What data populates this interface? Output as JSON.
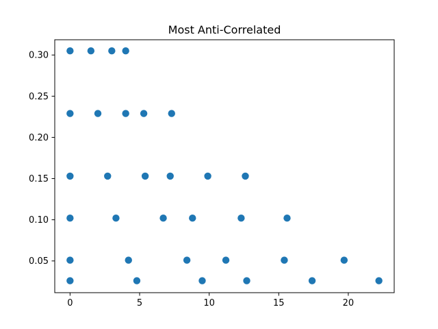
{
  "chart_data": {
    "type": "scatter",
    "title": "Most Anti-Correlated",
    "xlabel": "",
    "ylabel": "",
    "xlim": [
      -1.1,
      23.3
    ],
    "ylim": [
      0.0115,
      0.3185
    ],
    "x_ticks": [
      0,
      5,
      10,
      15,
      20
    ],
    "x_tick_labels": [
      "0",
      "5",
      "10",
      "15",
      "20"
    ],
    "y_ticks": [
      0.05,
      0.1,
      0.15,
      0.2,
      0.25,
      0.3
    ],
    "y_tick_labels": [
      "0.05",
      "0.10",
      "0.15",
      "0.20",
      "0.25",
      "0.30"
    ],
    "grid": false,
    "marker_color": "#1f77b4",
    "points": [
      {
        "x": 0.0,
        "y": 0.305
      },
      {
        "x": 1.5,
        "y": 0.305
      },
      {
        "x": 3.0,
        "y": 0.305
      },
      {
        "x": 4.0,
        "y": 0.305
      },
      {
        "x": 0.0,
        "y": 0.229
      },
      {
        "x": 2.0,
        "y": 0.229
      },
      {
        "x": 4.0,
        "y": 0.229
      },
      {
        "x": 5.3,
        "y": 0.229
      },
      {
        "x": 7.3,
        "y": 0.229
      },
      {
        "x": 0.0,
        "y": 0.153
      },
      {
        "x": 2.7,
        "y": 0.153
      },
      {
        "x": 5.4,
        "y": 0.153
      },
      {
        "x": 7.2,
        "y": 0.153
      },
      {
        "x": 9.9,
        "y": 0.153
      },
      {
        "x": 12.6,
        "y": 0.153
      },
      {
        "x": 0.0,
        "y": 0.102
      },
      {
        "x": 3.3,
        "y": 0.102
      },
      {
        "x": 6.7,
        "y": 0.102
      },
      {
        "x": 8.8,
        "y": 0.102
      },
      {
        "x": 12.3,
        "y": 0.102
      },
      {
        "x": 15.6,
        "y": 0.102
      },
      {
        "x": 0.0,
        "y": 0.051
      },
      {
        "x": 4.2,
        "y": 0.051
      },
      {
        "x": 8.4,
        "y": 0.051
      },
      {
        "x": 11.2,
        "y": 0.051
      },
      {
        "x": 15.4,
        "y": 0.051
      },
      {
        "x": 19.7,
        "y": 0.051
      },
      {
        "x": 0.0,
        "y": 0.026
      },
      {
        "x": 4.8,
        "y": 0.026
      },
      {
        "x": 9.5,
        "y": 0.026
      },
      {
        "x": 12.7,
        "y": 0.026
      },
      {
        "x": 17.4,
        "y": 0.026
      },
      {
        "x": 22.2,
        "y": 0.026
      }
    ]
  }
}
